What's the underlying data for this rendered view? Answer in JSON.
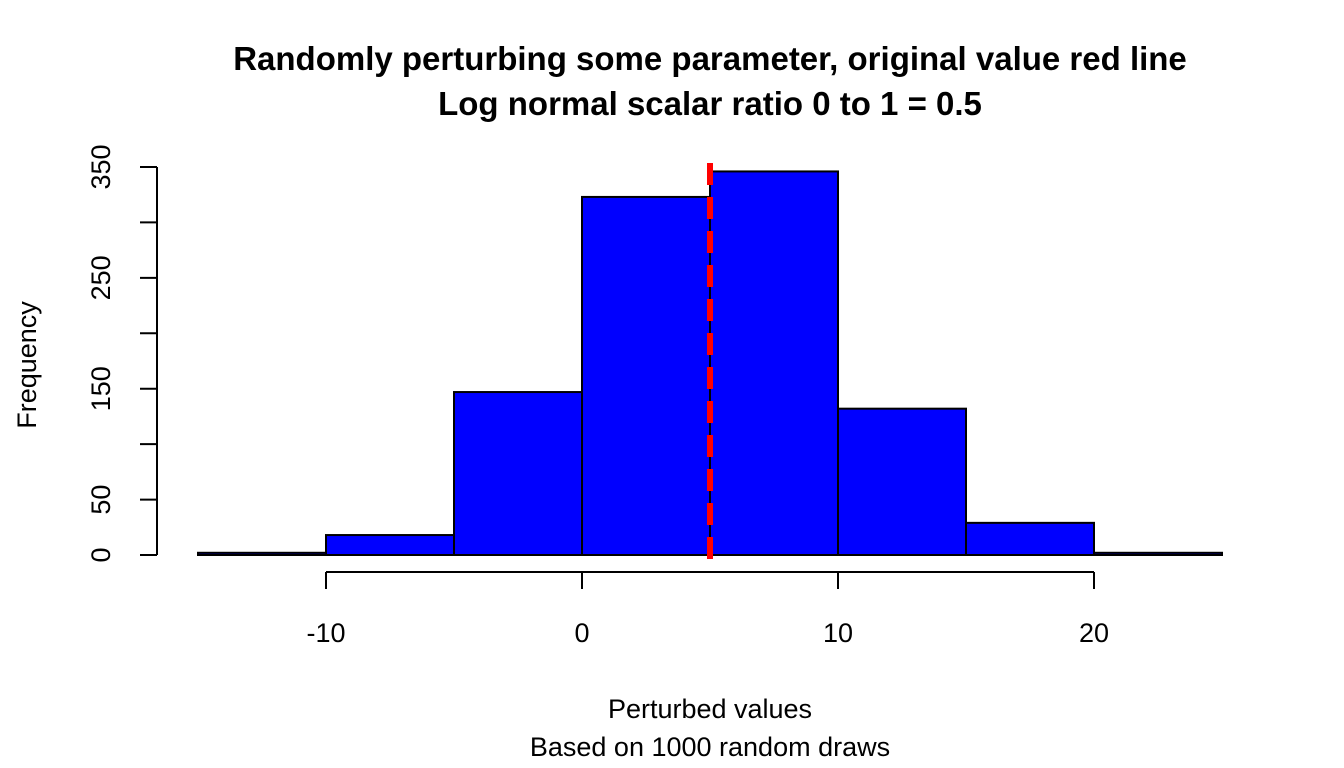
{
  "chart_data": {
    "type": "bar",
    "title": "Randomly perturbing some parameter, original value red line",
    "subtitle": "Log normal scalar ratio 0 to 1 = 0.5",
    "xlabel": "Perturbed values",
    "sublabel": "Based on 1000 random draws",
    "ylabel": "Frequency",
    "bins": [
      {
        "from": -15,
        "to": -10,
        "count": 2
      },
      {
        "from": -10,
        "to": -5,
        "count": 18
      },
      {
        "from": -5,
        "to": 0,
        "count": 147
      },
      {
        "from": 0,
        "to": 5,
        "count": 323
      },
      {
        "from": 5,
        "to": 10,
        "count": 346
      },
      {
        "from": 10,
        "to": 15,
        "count": 132
      },
      {
        "from": 15,
        "to": 20,
        "count": 29
      },
      {
        "from": 20,
        "to": 25,
        "count": 2
      }
    ],
    "xlim": [
      -15,
      25
    ],
    "ylim": [
      0,
      350
    ],
    "x_ticks": [
      -10,
      0,
      10,
      20
    ],
    "x_tick_labels": [
      "-10",
      "0",
      "10",
      "20"
    ],
    "y_ticks": [
      0,
      50,
      100,
      150,
      200,
      250,
      300,
      350
    ],
    "y_tick_labels": [
      "0",
      "50",
      "",
      "150",
      "",
      "250",
      "",
      "350"
    ],
    "reference_line": {
      "x": 5,
      "color": "#ff0000",
      "style": "dashed"
    },
    "bar_color": "#0000ff"
  }
}
